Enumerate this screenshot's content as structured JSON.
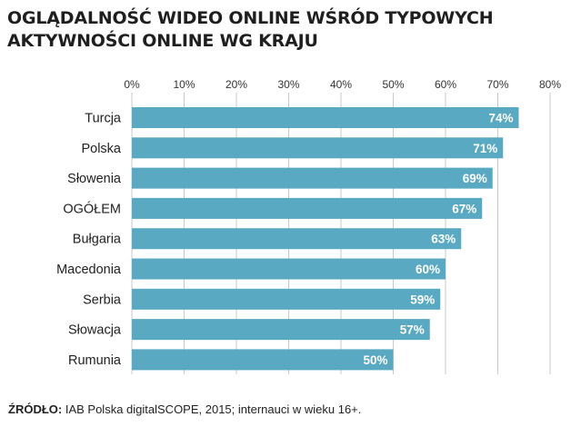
{
  "title": {
    "line1": "OGLĄDALNOŚĆ WIDEO ONLINE WŚRÓD TYPOWYCH",
    "line2": "AKTYWNOŚCI ONLINE WG KRAJU"
  },
  "source": {
    "label": "ŹRÓDŁO:",
    "text": "IAB Polska digitalSCOPE, 2015; internauci w wieku 16+."
  },
  "colors": {
    "bar": "#5aa9c2",
    "grid": "#c9c9c9",
    "bar_label": "#ffffff"
  },
  "chart_data": {
    "type": "bar",
    "orientation": "horizontal",
    "title": "OGLĄDALNOŚĆ WIDEO ONLINE WŚRÓD TYPOWYCH AKTYWNOŚCI ONLINE WG KRAJU",
    "categories": [
      "Turcja",
      "Polska",
      "Słowenia",
      "OGÓŁEM",
      "Bułgaria",
      "Macedonia",
      "Serbia",
      "Słowacja",
      "Rumunia"
    ],
    "values": [
      74,
      71,
      69,
      67,
      63,
      60,
      59,
      57,
      50
    ],
    "value_labels": [
      "74%",
      "71%",
      "69%",
      "67%",
      "63%",
      "60%",
      "59%",
      "57%",
      "50%"
    ],
    "x_ticks": [
      "0%",
      "10%",
      "20%",
      "30%",
      "40%",
      "50%",
      "60%",
      "70%",
      "80%"
    ],
    "x_tick_values": [
      0,
      10,
      20,
      30,
      40,
      50,
      60,
      70,
      80
    ],
    "xlim": [
      0,
      80
    ],
    "xlabel": "",
    "ylabel": "",
    "grid": true,
    "axis_position": "top",
    "legend": false
  }
}
